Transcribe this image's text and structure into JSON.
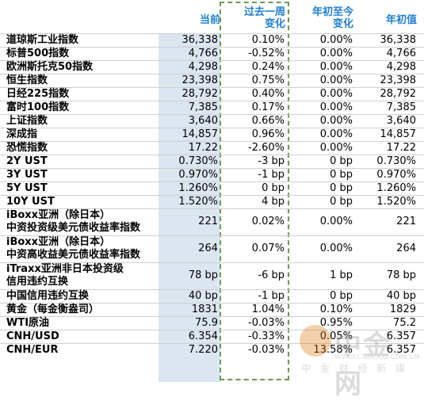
{
  "headers": {
    "current": "当前",
    "week_change_line1": "过去一周",
    "week_change_line2": "变化",
    "ytd_change_line1": "年初至今",
    "ytd_change_line2": "变化",
    "year_start": "年初值"
  },
  "rows": [
    {
      "name": "道琼斯工业指数",
      "current": "36,338",
      "week": "0.10%",
      "ytd": "0.00%",
      "start": "36,338"
    },
    {
      "name": "标普500指数",
      "current": "4,766",
      "week": "-0.52%",
      "ytd": "0.00%",
      "start": "4,766"
    },
    {
      "name": "欧洲斯托克50指数",
      "current": "4,298",
      "week": "0.24%",
      "ytd": "0.00%",
      "start": "4,298"
    },
    {
      "name": "恒生指数",
      "current": "23,398",
      "week": "0.75%",
      "ytd": "0.00%",
      "start": "23,398"
    },
    {
      "name": "日经225指数",
      "current": "28,792",
      "week": "0.40%",
      "ytd": "0.00%",
      "start": "28,792"
    },
    {
      "name": "富时100指数",
      "current": "7,385",
      "week": "0.17%",
      "ytd": "0.00%",
      "start": "7,385"
    },
    {
      "name": "上证指数",
      "current": "3,640",
      "week": "0.66%",
      "ytd": "0.00%",
      "start": "3,640"
    },
    {
      "name": "深成指",
      "current": "14,857",
      "week": "0.96%",
      "ytd": "0.00%",
      "start": "14,857"
    },
    {
      "name": "恐慌指数",
      "current": "17.22",
      "week": "-2.60%",
      "ytd": "0.00%",
      "start": "17.22"
    },
    {
      "name": "2Y UST",
      "current": "0.730%",
      "week": "-3 bp",
      "ytd": "0 bp",
      "start": "0.730%"
    },
    {
      "name": "3Y UST",
      "current": "0.970%",
      "week": "-1 bp",
      "ytd": "0 bp",
      "start": "0.970%"
    },
    {
      "name": "5Y UST",
      "current": "1.260%",
      "week": "0 bp",
      "ytd": "0 bp",
      "start": "1.260%"
    },
    {
      "name": "10Y UST",
      "current": "1.520%",
      "week": "4 bp",
      "ytd": "0 bp",
      "start": "1.520%"
    },
    {
      "name": "iBoxx亚洲（除日本）",
      "name2": "中资投资级美元债收益率指数",
      "current": "221",
      "week": "0.02%",
      "ytd": "0.00%",
      "start": "221"
    },
    {
      "name": "iBoxx亚洲（除日本）",
      "name2": "中资高收益美元债收益率指数",
      "current": "264",
      "week": "0.07%",
      "ytd": "0.00%",
      "start": "264"
    },
    {
      "name": "iTraxx亚洲非日本投资级",
      "name2": "信用违约互换",
      "current": "78 bp",
      "week": "-6 bp",
      "ytd": "1 bp",
      "start": "78 bp"
    },
    {
      "name": "中国信用违约互换",
      "current": "40 bp",
      "week": "-1 bp",
      "ytd": "0 bp",
      "start": "40 bp"
    },
    {
      "name": "黄金（每金衡盎司）",
      "current": "1831",
      "week": "1.04%",
      "ytd": "0.10%",
      "start": "1829"
    },
    {
      "name": "WTI原油",
      "current": "75.9",
      "week": "-0.03%",
      "ytd": "0.95%",
      "start": "75.2"
    },
    {
      "name": "CNH/USD",
      "current": "6.354",
      "week": "-0.33%",
      "ytd": "0.05%",
      "start": "6.357"
    },
    {
      "name": "CNH/EUR",
      "current": "7.220",
      "week": "-0.03%",
      "ytd": "13.58%",
      "start": "6.357"
    }
  ],
  "watermark": {
    "brand": "中金网",
    "url": "WWW.CNGOLD.COM.CN",
    "slogan": "中 金 财 经 新 媒"
  },
  "colors": {
    "header_text": "#1f7fd0",
    "highlight_column": "#dce6f1",
    "dashed_box": "#6a9a54"
  }
}
